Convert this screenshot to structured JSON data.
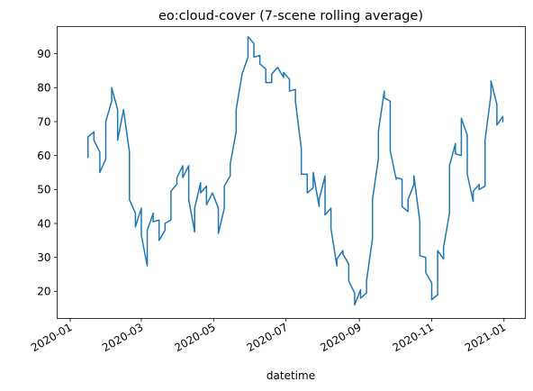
{
  "chart_data": {
    "type": "line",
    "title": "eo:cloud-cover (7-scene rolling average)",
    "xlabel": "datetime",
    "ylabel": "",
    "x_ticks": [
      "2020-01",
      "2020-03",
      "2020-05",
      "2020-07",
      "2020-09",
      "2020-11",
      "2021-01"
    ],
    "y_ticks": [
      "20",
      "30",
      "40",
      "50",
      "60",
      "70",
      "80",
      "90"
    ],
    "xlim": [
      "2019-12-21",
      "2021-01-19"
    ],
    "ylim": [
      12,
      98
    ],
    "grid": false,
    "legend": "none",
    "colors": {
      "series": "#1f77b4"
    },
    "series": [
      {
        "points": [
          [
            "2020-01-16",
            59.5
          ],
          [
            "2020-01-16",
            65.5
          ],
          [
            "2020-01-21",
            67.0
          ],
          [
            "2020-01-21",
            64.5
          ],
          [
            "2020-01-26",
            61.0
          ],
          [
            "2020-01-26",
            55.0
          ],
          [
            "2020-01-31",
            59.0
          ],
          [
            "2020-01-31",
            70.0
          ],
          [
            "2020-02-05",
            76.0
          ],
          [
            "2020-02-05",
            80.0
          ],
          [
            "2020-02-10",
            73.5
          ],
          [
            "2020-02-10",
            64.5
          ],
          [
            "2020-02-15",
            73.5
          ],
          [
            "2020-02-20",
            61.0
          ],
          [
            "2020-02-20",
            47.0
          ],
          [
            "2020-02-25",
            43.0
          ],
          [
            "2020-02-25",
            39.0
          ],
          [
            "2020-03-01",
            44.5
          ],
          [
            "2020-03-01",
            36.5
          ],
          [
            "2020-03-06",
            27.5
          ],
          [
            "2020-03-06",
            38.0
          ],
          [
            "2020-03-11",
            43.0
          ],
          [
            "2020-03-11",
            40.5
          ],
          [
            "2020-03-16",
            41.0
          ],
          [
            "2020-03-16",
            35.0
          ],
          [
            "2020-03-21",
            38.0
          ],
          [
            "2020-03-21",
            40.0
          ],
          [
            "2020-03-26",
            41.0
          ],
          [
            "2020-03-26",
            49.5
          ],
          [
            "2020-03-31",
            51.5
          ],
          [
            "2020-03-31",
            53.5
          ],
          [
            "2020-04-05",
            57.0
          ],
          [
            "2020-04-05",
            53.5
          ],
          [
            "2020-04-10",
            57.0
          ],
          [
            "2020-04-10",
            47.0
          ],
          [
            "2020-04-15",
            37.5
          ],
          [
            "2020-04-15",
            44.5
          ],
          [
            "2020-04-20",
            52.0
          ],
          [
            "2020-04-20",
            49.0
          ],
          [
            "2020-04-25",
            51.0
          ],
          [
            "2020-04-25",
            45.5
          ],
          [
            "2020-04-30",
            49.0
          ],
          [
            "2020-05-05",
            44.5
          ],
          [
            "2020-05-05",
            37.0
          ],
          [
            "2020-05-10",
            44.5
          ],
          [
            "2020-05-10",
            51.0
          ],
          [
            "2020-05-15",
            54.0
          ],
          [
            "2020-05-15",
            57.5
          ],
          [
            "2020-05-20",
            67.0
          ],
          [
            "2020-05-20",
            73.5
          ],
          [
            "2020-05-25",
            84.0
          ],
          [
            "2020-05-30",
            89.0
          ],
          [
            "2020-05-30",
            95.0
          ],
          [
            "2020-06-04",
            93.0
          ],
          [
            "2020-06-04",
            89.0
          ],
          [
            "2020-06-09",
            89.5
          ],
          [
            "2020-06-09",
            87.0
          ],
          [
            "2020-06-14",
            85.5
          ],
          [
            "2020-06-14",
            81.5
          ],
          [
            "2020-06-19",
            81.5
          ],
          [
            "2020-06-19",
            84.0
          ],
          [
            "2020-06-24",
            86.0
          ],
          [
            "2020-06-29",
            83.0
          ],
          [
            "2020-06-29",
            84.5
          ],
          [
            "2020-07-04",
            82.5
          ],
          [
            "2020-07-04",
            79.0
          ],
          [
            "2020-07-09",
            79.5
          ],
          [
            "2020-07-09",
            76.0
          ],
          [
            "2020-07-14",
            62.0
          ],
          [
            "2020-07-14",
            54.5
          ],
          [
            "2020-07-19",
            54.5
          ],
          [
            "2020-07-19",
            49.0
          ],
          [
            "2020-07-24",
            50.5
          ],
          [
            "2020-07-24",
            55.0
          ],
          [
            "2020-07-29",
            45.0
          ],
          [
            "2020-07-29",
            47.0
          ],
          [
            "2020-08-03",
            54.0
          ],
          [
            "2020-08-03",
            42.5
          ],
          [
            "2020-08-08",
            44.5
          ],
          [
            "2020-08-08",
            38.5
          ],
          [
            "2020-08-13",
            27.5
          ],
          [
            "2020-08-13",
            29.5
          ],
          [
            "2020-08-18",
            32.0
          ],
          [
            "2020-08-18",
            31.0
          ],
          [
            "2020-08-23",
            28.0
          ],
          [
            "2020-08-23",
            23.0
          ],
          [
            "2020-08-28",
            19.5
          ],
          [
            "2020-08-28",
            16.0
          ],
          [
            "2020-09-02",
            20.5
          ],
          [
            "2020-09-02",
            18.0
          ],
          [
            "2020-09-07",
            19.5
          ],
          [
            "2020-09-07",
            23.0
          ],
          [
            "2020-09-12",
            35.5
          ],
          [
            "2020-09-12",
            47.0
          ],
          [
            "2020-09-17",
            59.0
          ],
          [
            "2020-09-17",
            67.0
          ],
          [
            "2020-09-22",
            79.0
          ],
          [
            "2020-09-22",
            77.0
          ],
          [
            "2020-09-27",
            76.0
          ],
          [
            "2020-09-27",
            61.5
          ],
          [
            "2020-10-02",
            53.0
          ],
          [
            "2020-10-02",
            53.5
          ],
          [
            "2020-10-07",
            53.0
          ],
          [
            "2020-10-07",
            45.0
          ],
          [
            "2020-10-12",
            43.5
          ],
          [
            "2020-10-12",
            47.0
          ],
          [
            "2020-10-17",
            51.5
          ],
          [
            "2020-10-17",
            54.0
          ],
          [
            "2020-10-22",
            40.5
          ],
          [
            "2020-10-22",
            30.5
          ],
          [
            "2020-10-27",
            30.0
          ],
          [
            "2020-10-27",
            25.5
          ],
          [
            "2020-11-01",
            22.5
          ],
          [
            "2020-11-01",
            17.5
          ],
          [
            "2020-11-06",
            19.0
          ],
          [
            "2020-11-06",
            32.0
          ],
          [
            "2020-11-11",
            29.5
          ],
          [
            "2020-11-11",
            33.0
          ],
          [
            "2020-11-16",
            43.0
          ],
          [
            "2020-11-16",
            57.0
          ],
          [
            "2020-11-21",
            63.5
          ],
          [
            "2020-11-21",
            60.5
          ],
          [
            "2020-11-26",
            60.0
          ],
          [
            "2020-11-26",
            71.0
          ],
          [
            "2020-12-01",
            66.0
          ],
          [
            "2020-12-01",
            54.5
          ],
          [
            "2020-12-06",
            46.5
          ],
          [
            "2020-12-06",
            49.5
          ],
          [
            "2020-12-11",
            51.5
          ],
          [
            "2020-12-11",
            50.0
          ],
          [
            "2020-12-16",
            51.0
          ],
          [
            "2020-12-16",
            64.5
          ],
          [
            "2020-12-21",
            78.0
          ],
          [
            "2020-12-21",
            82.0
          ],
          [
            "2020-12-26",
            75.0
          ],
          [
            "2020-12-26",
            69.0
          ],
          [
            "2020-12-31",
            71.5
          ],
          [
            "2020-12-31",
            70.0
          ]
        ]
      }
    ]
  }
}
